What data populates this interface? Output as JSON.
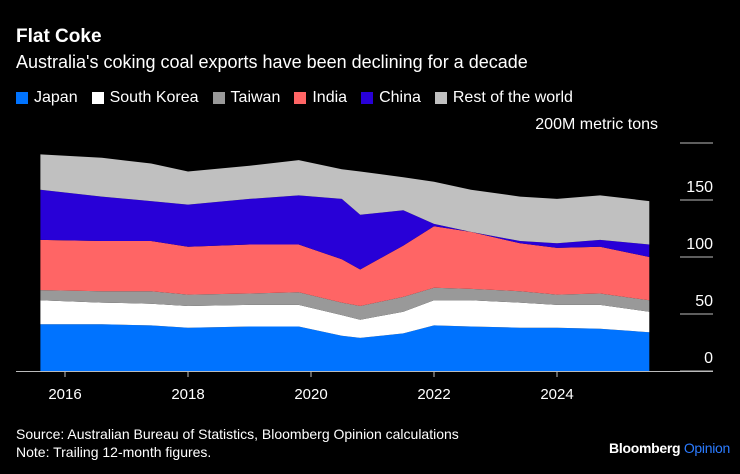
{
  "header": {
    "title": "Flat Coke",
    "subtitle": "Australia's coking coal exports have been declining for a decade"
  },
  "footer": {
    "source": "Source: Australian Bureau of Statistics, Bloomberg Opinion calculations",
    "note": "Note: Trailing 12-month figures.",
    "brand_main": "Bloomberg",
    "brand_accent": "Opinion"
  },
  "chart_data": {
    "type": "area",
    "stacked": true,
    "title": "Flat Coke",
    "subtitle": "Australia's coking coal exports have been declining for a decade",
    "unit_label": "200M metric tons",
    "xlabel": "",
    "ylabel": "Million metric tons",
    "ylim": [
      0,
      200
    ],
    "yticks": [
      0,
      50,
      100,
      150,
      200
    ],
    "ytick_labels": [
      "0",
      "50",
      "100",
      "150",
      "200M metric tons"
    ],
    "xlim": [
      2015.2,
      2026.0
    ],
    "xticks": [
      2016,
      2018,
      2020,
      2022,
      2024
    ],
    "xtick_labels": [
      "2016",
      "2018",
      "2020",
      "2022",
      "2024"
    ],
    "legend_position": "top",
    "x": [
      2015.6,
      2016.6,
      2017.4,
      2018.0,
      2019.0,
      2019.8,
      2020.5,
      2020.8,
      2021.5,
      2022.0,
      2022.6,
      2023.4,
      2024.0,
      2024.7,
      2025.5
    ],
    "series": [
      {
        "name": "Japan",
        "color": "#0073ff",
        "values": [
          41,
          41,
          40,
          38,
          39,
          39,
          31,
          29,
          33,
          40,
          39,
          38,
          38,
          37,
          34
        ]
      },
      {
        "name": "South Korea",
        "color": "#ffffff",
        "values": [
          21,
          19,
          19,
          19,
          19,
          19,
          18,
          16,
          19,
          22,
          23,
          22,
          20,
          21,
          18
        ]
      },
      {
        "name": "Taiwan",
        "color": "#999999",
        "values": [
          9,
          10,
          11,
          10,
          10,
          11,
          11,
          12,
          13,
          11,
          10,
          10,
          9,
          10,
          10
        ]
      },
      {
        "name": "India",
        "color": "#ff6565",
        "values": [
          44,
          44,
          44,
          42,
          43,
          42,
          38,
          32,
          45,
          54,
          50,
          42,
          41,
          41,
          38
        ]
      },
      {
        "name": "China",
        "color": "#2800d7",
        "values": [
          44,
          39,
          35,
          37,
          40,
          43,
          53,
          48,
          31,
          2,
          0,
          2,
          4,
          6,
          11
        ]
      },
      {
        "name": "Rest of the world",
        "color": "#c0c0c0",
        "values": [
          31,
          34,
          33,
          29,
          29,
          31,
          26,
          38,
          29,
          37,
          37,
          39,
          39,
          39,
          38
        ]
      }
    ]
  }
}
